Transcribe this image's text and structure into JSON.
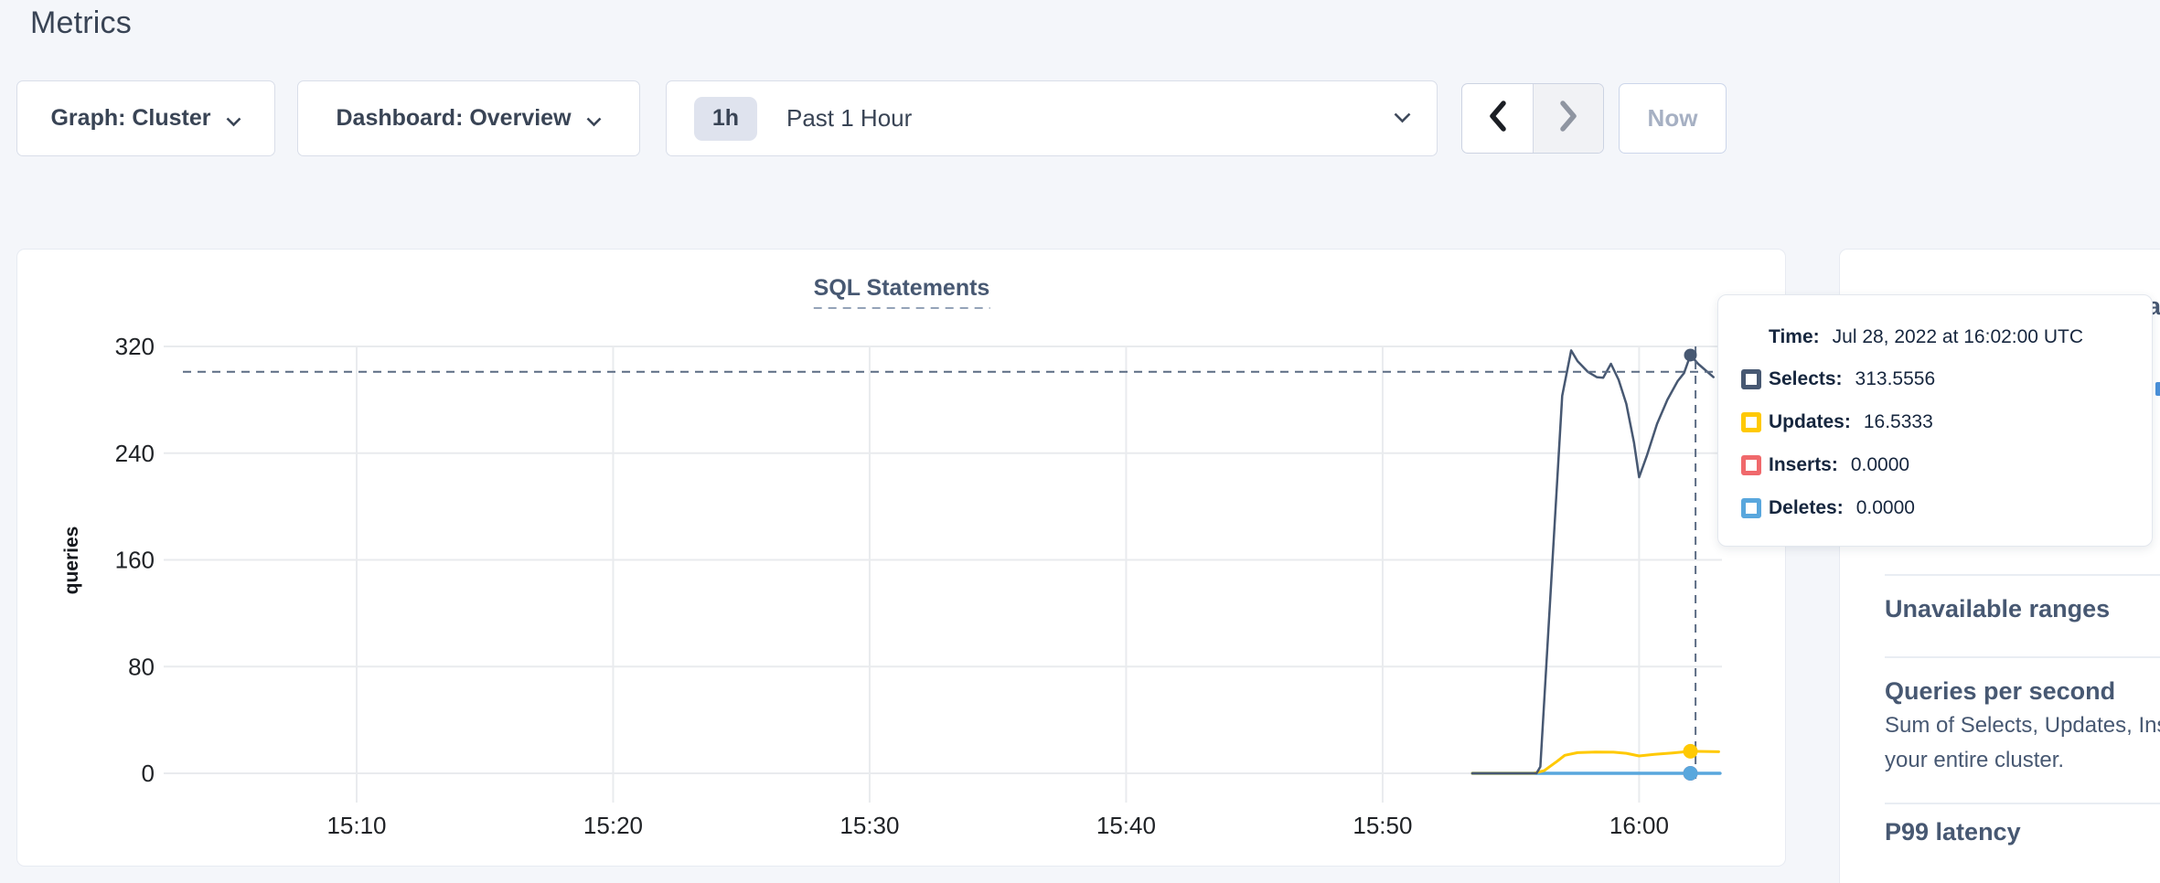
{
  "page": {
    "title": "Metrics"
  },
  "toolbar": {
    "graph_dropdown": {
      "label": "Graph: Cluster"
    },
    "dashboard_dropdown": {
      "label": "Dashboard: Overview"
    },
    "time_selector": {
      "badge": "1h",
      "label": "Past 1 Hour"
    },
    "now_button": {
      "label": "Now"
    }
  },
  "chart_data": {
    "type": "line",
    "title": "SQL Statements",
    "ylabel": "queries",
    "yticks": [
      0,
      80,
      160,
      240,
      320
    ],
    "ylim": [
      0,
      331
    ],
    "xticks": [
      {
        "t": 10,
        "label": "15:10"
      },
      {
        "t": 20,
        "label": "15:20"
      },
      {
        "t": 30,
        "label": "15:30"
      },
      {
        "t": 40,
        "label": "15:40"
      },
      {
        "t": 50,
        "label": "15:50"
      },
      {
        "t": 60,
        "label": "16:00"
      }
    ],
    "xlim_minutes_after_1500": [
      2.478,
      63.23
    ],
    "grid": true,
    "series": [
      {
        "name": "Inserts",
        "color": "#f0696c",
        "width": 3,
        "points": [
          [
            53.5,
            0
          ],
          [
            63.15,
            0
          ]
        ]
      },
      {
        "name": "Deletes",
        "color": "#59a7dd",
        "width": 3.5,
        "points": [
          [
            53.5,
            0
          ],
          [
            63.15,
            0
          ]
        ]
      },
      {
        "name": "Updates",
        "color": "#ffc902",
        "width": 3,
        "points": [
          [
            53.5,
            0
          ],
          [
            54.5,
            0
          ],
          [
            55.5,
            0
          ],
          [
            55.9,
            0
          ],
          [
            56.3,
            2
          ],
          [
            56.8,
            9
          ],
          [
            57.1,
            13.5
          ],
          [
            57.6,
            15.5
          ],
          [
            58.3,
            16
          ],
          [
            59.0,
            15.8
          ],
          [
            59.5,
            15
          ],
          [
            60.0,
            13
          ],
          [
            60.6,
            14.2
          ],
          [
            61.3,
            15.3
          ],
          [
            62.0,
            16.5333
          ],
          [
            63.1,
            16.2
          ]
        ]
      },
      {
        "name": "Selects",
        "color": "#475872",
        "width": 2.5,
        "points": [
          [
            53.5,
            0
          ],
          [
            54.5,
            0
          ],
          [
            55.5,
            0
          ],
          [
            56.0,
            0
          ],
          [
            56.15,
            5
          ],
          [
            57.0,
            283
          ],
          [
            57.35,
            317
          ],
          [
            57.6,
            309
          ],
          [
            58.0,
            301
          ],
          [
            58.35,
            297
          ],
          [
            58.6,
            296.5
          ],
          [
            58.9,
            307
          ],
          [
            59.2,
            295
          ],
          [
            59.5,
            277
          ],
          [
            59.8,
            248
          ],
          [
            60.0,
            222
          ],
          [
            60.3,
            238
          ],
          [
            60.7,
            262
          ],
          [
            61.1,
            280
          ],
          [
            61.5,
            294
          ],
          [
            61.75,
            300
          ],
          [
            62.0,
            313.5556
          ],
          [
            62.3,
            307
          ],
          [
            62.9,
            297
          ]
        ]
      }
    ],
    "hover": {
      "t": 62.0,
      "cursor_t": 62.2,
      "cursor_value": 301,
      "time_label": "Jul 28, 2022 at 16:02:00 UTC",
      "values": {
        "Selects": 313.5556,
        "Updates": 16.5333,
        "Inserts": 0,
        "Deletes": 0
      }
    }
  },
  "tooltip": {
    "time_label": "Time:",
    "time_value": "Jul 28, 2022 at 16:02:00 UTC",
    "rows": [
      {
        "label": "Selects:",
        "value": "313.5556",
        "color": "#475872"
      },
      {
        "label": "Updates:",
        "value": "16.5333",
        "color": "#ffc902"
      },
      {
        "label": "Inserts:",
        "value": "0.0000",
        "color": "#f0696c"
      },
      {
        "label": "Deletes:",
        "value": "0.0000",
        "color": "#59a7dd"
      }
    ]
  },
  "sidebar": {
    "sections": [
      {
        "heading": "Unavailable ranges"
      },
      {
        "heading": "Queries per second",
        "description_lines": [
          "Sum of Selects, Updates, Inserts and Deletes per second across",
          "your entire cluster."
        ]
      },
      {
        "heading": "P99 latency"
      }
    ],
    "clipped_heading_fragment": "a"
  },
  "colors": {
    "accent_slate": "#475872",
    "crosshair": "#5c6c84",
    "grid": "#e9ebee",
    "page_bg": "#f4f6fa"
  }
}
